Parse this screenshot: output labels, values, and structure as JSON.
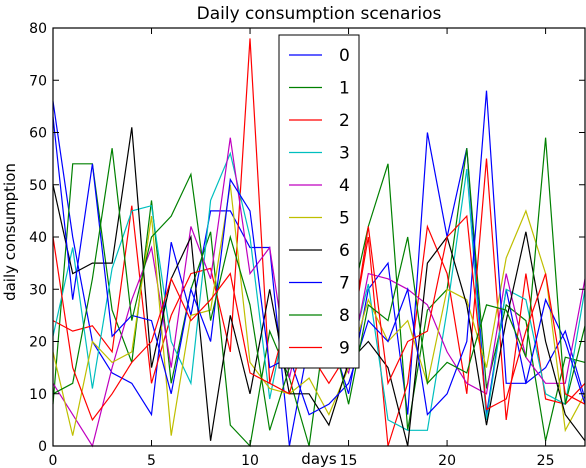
{
  "chart_data": {
    "type": "line",
    "title": "Daily consumption scenarios",
    "xlabel": "days",
    "ylabel": "daily consumption",
    "xlim": [
      0,
      27
    ],
    "ylim": [
      0,
      80
    ],
    "xticks": [
      "0",
      "5",
      "10",
      "15",
      "20",
      "25"
    ],
    "yticks": [
      "0",
      "10",
      "20",
      "30",
      "40",
      "50",
      "60",
      "70",
      "80"
    ],
    "grid": false,
    "legend_position": "top-center",
    "x": [
      0,
      1,
      2,
      3,
      4,
      5,
      6,
      7,
      8,
      9,
      10,
      11,
      12,
      13,
      14,
      15,
      16,
      17,
      18,
      19,
      20,
      21,
      22,
      23,
      24,
      25,
      26,
      27
    ],
    "series": [
      {
        "name": "0",
        "color": "#0000ff",
        "values": [
          66,
          40,
          20,
          14,
          12,
          6,
          39,
          25,
          45,
          45,
          38,
          38,
          0,
          20,
          22,
          10,
          30,
          35,
          6,
          60,
          40,
          57,
          6,
          30,
          12,
          15,
          22,
          9
        ]
      },
      {
        "name": "1",
        "color": "#008000",
        "values": [
          8,
          54,
          54,
          26,
          16,
          47,
          12,
          30,
          41,
          4,
          0,
          22,
          13,
          0,
          28,
          25,
          42,
          54,
          3,
          26,
          30,
          57,
          11,
          27,
          24,
          1,
          17,
          16
        ]
      },
      {
        "name": "2",
        "color": "#ff0000",
        "values": [
          24,
          22,
          23,
          18,
          46,
          12,
          25,
          33,
          34,
          18,
          78,
          12,
          26,
          18,
          12,
          18,
          40,
          0,
          12,
          42,
          33,
          10,
          55,
          5,
          33,
          9,
          8,
          12
        ]
      },
      {
        "name": "3",
        "color": "#00bfbf",
        "values": [
          21,
          38,
          11,
          34,
          45,
          46,
          20,
          12,
          47,
          56,
          40,
          9,
          28,
          22,
          28,
          16,
          31,
          5,
          3,
          3,
          26,
          53,
          5,
          30,
          28,
          10,
          8,
          30
        ]
      },
      {
        "name": "4",
        "color": "#bf00bf",
        "values": [
          12,
          6,
          0,
          15,
          28,
          38,
          15,
          42,
          32,
          59,
          33,
          38,
          13,
          30,
          20,
          14,
          33,
          32,
          30,
          27,
          18,
          12,
          10,
          33,
          17,
          12,
          12,
          32
        ]
      },
      {
        "name": "5",
        "color": "#bfbf00",
        "values": [
          18,
          2,
          20,
          16,
          18,
          44,
          2,
          25,
          26,
          50,
          16,
          11,
          10,
          13,
          6,
          15,
          28,
          20,
          24,
          12,
          30,
          28,
          15,
          36,
          45,
          33,
          3,
          10
        ]
      },
      {
        "name": "6",
        "color": "#000000",
        "values": [
          50,
          33,
          35,
          35,
          61,
          15,
          32,
          40,
          1,
          25,
          10,
          30,
          10,
          10,
          4,
          16,
          20,
          15,
          0,
          35,
          40,
          27,
          4,
          24,
          41,
          20,
          6,
          1
        ]
      },
      {
        "name": "7",
        "color": "#0000ff",
        "values": [
          63,
          28,
          54,
          21,
          25,
          24,
          10,
          30,
          20,
          51,
          45,
          15,
          17,
          6,
          8,
          12,
          24,
          20,
          30,
          6,
          10,
          20,
          68,
          12,
          12,
          28,
          20,
          8
        ]
      },
      {
        "name": "8",
        "color": "#008000",
        "values": [
          10,
          12,
          32,
          57,
          24,
          40,
          44,
          52,
          24,
          40,
          27,
          3,
          15,
          22,
          24,
          8,
          27,
          24,
          40,
          12,
          16,
          14,
          27,
          26,
          17,
          59,
          8,
          23
        ]
      },
      {
        "name": "9",
        "color": "#ff0000",
        "values": [
          40,
          15,
          5,
          10,
          16,
          20,
          32,
          24,
          28,
          33,
          14,
          12,
          10,
          24,
          29,
          17,
          42,
          12,
          20,
          22,
          40,
          44,
          7,
          9,
          22,
          33,
          10,
          8
        ]
      }
    ]
  }
}
